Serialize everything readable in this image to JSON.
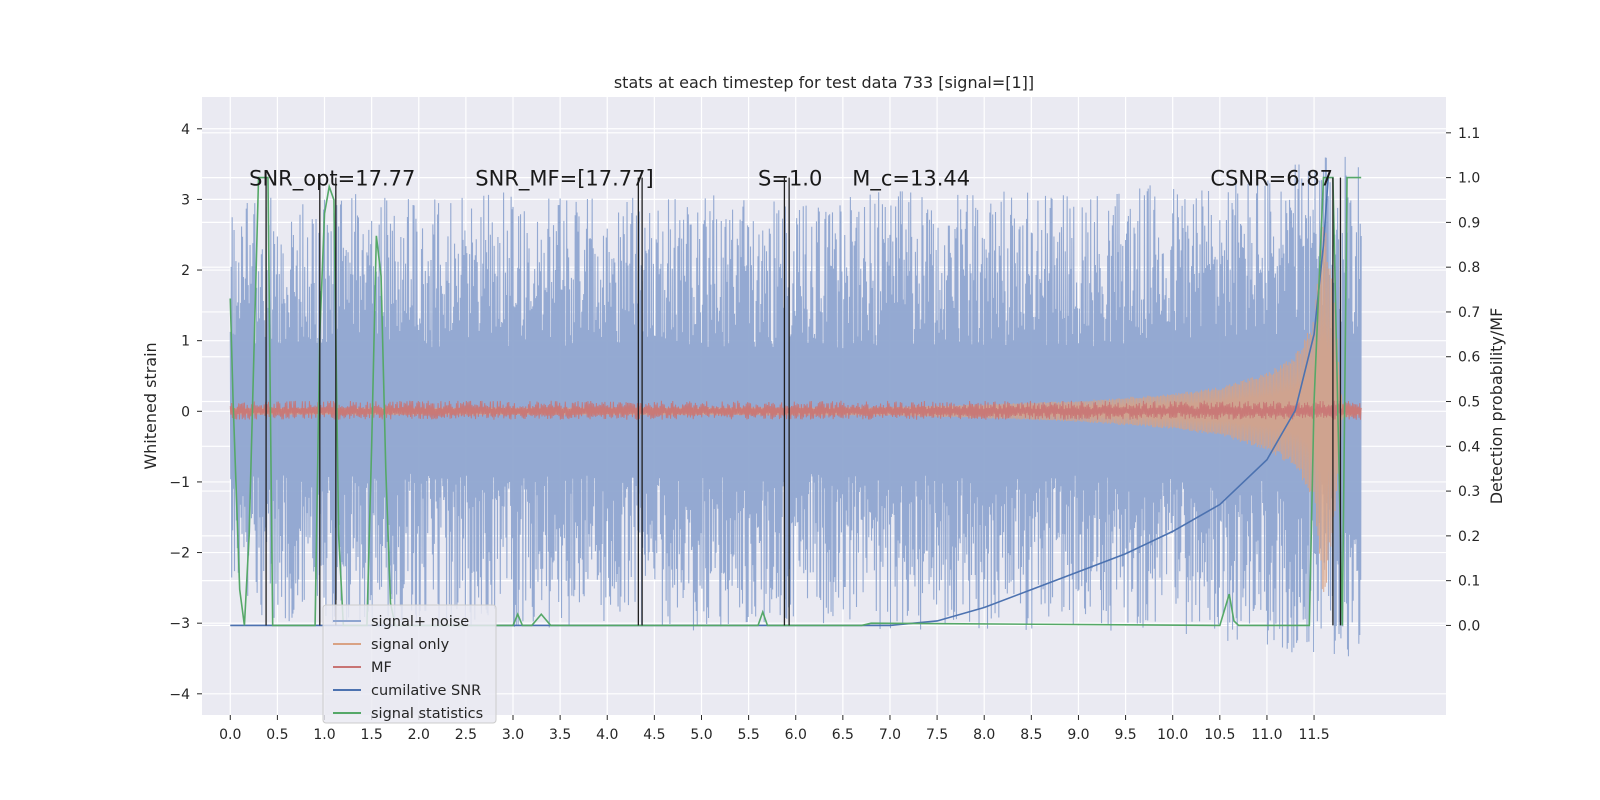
{
  "chart_data": {
    "type": "line",
    "title": "stats at each timestep for test data 733 [signal=[1]]",
    "xlabel": "",
    "ylabel": "Whitened strain",
    "ylabel_right": "Detection probability/MF",
    "xlim": [
      -0.3,
      12.9
    ],
    "ylim": [
      -4.3,
      4.45
    ],
    "ylim_right": [
      -0.2,
      1.18
    ],
    "grid": true,
    "legend_position": "lower-left",
    "x_ticks": [
      "0.0",
      "0.5",
      "1.0",
      "1.5",
      "2.0",
      "2.5",
      "3.0",
      "3.5",
      "4.0",
      "4.5",
      "5.0",
      "5.5",
      "6.0",
      "6.5",
      "7.0",
      "7.5",
      "8.0",
      "8.5",
      "9.0",
      "9.5",
      "10.0",
      "10.5",
      "11.0",
      "11.5"
    ],
    "y_ticks": [
      "4",
      "3",
      "2",
      "1",
      "0",
      "−1",
      "−2",
      "−3",
      "−4"
    ],
    "y_ticks_right": [
      "1.1",
      "1.0",
      "0.9",
      "0.8",
      "0.7",
      "0.6",
      "0.5",
      "0.4",
      "0.3",
      "0.2",
      "0.1",
      "0.0"
    ],
    "annotations": [
      {
        "text": "SNR_opt=17.77",
        "x": 0.2,
        "y": 3.2
      },
      {
        "text": "SNR_MF=[17.77]",
        "x": 2.6,
        "y": 3.2
      },
      {
        "text": "S=1.0",
        "x": 5.6,
        "y": 3.2
      },
      {
        "text": "M_c=13.44",
        "x": 6.6,
        "y": 3.2
      },
      {
        "text": "CSNR=6.87",
        "x": 10.4,
        "y": 3.2
      }
    ],
    "series": [
      {
        "name": "signal+ noise",
        "color": "#8fa5d0",
        "axis": "left",
        "envelope": {
          "x": [
            0.0,
            0.5,
            1.0,
            2.0,
            3.0,
            4.0,
            5.0,
            6.0,
            7.0,
            8.0,
            9.0,
            10.0,
            11.0,
            11.5,
            12.0
          ],
          "upper": [
            2.4,
            2.6,
            2.6,
            2.5,
            2.6,
            2.5,
            2.6,
            2.5,
            2.6,
            2.6,
            2.6,
            2.7,
            2.8,
            3.0,
            3.1
          ],
          "lower": [
            -2.3,
            -2.5,
            -2.5,
            -2.5,
            -2.6,
            -2.5,
            -2.6,
            -2.5,
            -2.6,
            -2.6,
            -2.6,
            -2.6,
            -2.8,
            -2.9,
            -2.9
          ]
        }
      },
      {
        "name": "signal only",
        "color": "#d9a284",
        "axis": "left",
        "envelope": {
          "x": [
            0.0,
            7.0,
            8.0,
            9.0,
            10.0,
            10.5,
            11.0,
            11.3,
            11.5,
            11.6,
            11.7,
            11.8,
            12.0
          ],
          "upper": [
            0.05,
            0.06,
            0.1,
            0.15,
            0.25,
            0.35,
            0.55,
            0.8,
            1.3,
            2.8,
            1.8,
            0.1,
            0.05
          ],
          "lower": [
            -0.05,
            -0.06,
            -0.1,
            -0.15,
            -0.25,
            -0.35,
            -0.55,
            -0.8,
            -1.3,
            -2.8,
            -1.8,
            -0.1,
            -0.05
          ]
        }
      },
      {
        "name": "MF",
        "color": "#c87474",
        "axis": "left",
        "envelope": {
          "x": [
            0.0,
            12.0
          ],
          "upper": [
            0.15,
            0.15
          ],
          "lower": [
            -0.12,
            -0.12
          ]
        }
      },
      {
        "name": "cumilative SNR",
        "color": "#4c72b0",
        "axis": "right",
        "x": [
          0.0,
          7.0,
          7.5,
          8.0,
          8.5,
          9.0,
          9.5,
          10.0,
          10.5,
          11.0,
          11.3,
          11.5,
          11.6,
          11.65
        ],
        "y": [
          0.0,
          0.0,
          0.01,
          0.04,
          0.08,
          0.12,
          0.16,
          0.21,
          0.27,
          0.37,
          0.48,
          0.65,
          0.85,
          1.0
        ]
      },
      {
        "name": "signal statistics",
        "color": "#55a868",
        "axis": "right",
        "x": [
          0.0,
          0.03,
          0.1,
          0.15,
          0.2,
          0.25,
          0.3,
          0.4,
          0.45,
          0.9,
          0.95,
          1.0,
          1.05,
          1.1,
          1.15,
          1.2,
          1.45,
          1.5,
          1.55,
          1.6,
          1.65,
          1.7,
          1.75,
          3.0,
          3.05,
          3.1,
          3.2,
          3.3,
          3.4,
          5.6,
          5.65,
          5.7,
          6.7,
          6.8,
          10.5,
          10.6,
          10.65,
          10.7,
          10.8,
          11.45,
          11.5,
          11.6,
          11.65,
          11.7,
          11.75,
          11.8,
          11.85,
          11.9,
          12.0
        ],
        "y": [
          0.73,
          0.5,
          0.08,
          0.0,
          0.2,
          0.6,
          1.0,
          1.0,
          0.0,
          0.0,
          0.65,
          0.92,
          0.98,
          0.95,
          0.2,
          0.0,
          0.0,
          0.4,
          0.87,
          0.78,
          0.35,
          0.05,
          0.0,
          0.0,
          0.025,
          0.0,
          0.0,
          0.025,
          0.0,
          0.0,
          0.03,
          0.0,
          0.0,
          0.005,
          0.0,
          0.07,
          0.01,
          0.0,
          0.0,
          0.0,
          0.5,
          1.0,
          1.0,
          1.0,
          0.5,
          0.0,
          1.0,
          1.0,
          1.0
        ]
      }
    ],
    "threshold_lines": {
      "name": "detection triggers",
      "color": "#1f1f1f",
      "x": [
        0.38,
        0.95,
        1.12,
        4.33,
        4.37,
        5.88,
        5.93,
        11.7,
        11.78
      ]
    }
  },
  "legend": {
    "items": [
      {
        "label": "signal+ noise",
        "color": "#8fa5d0"
      },
      {
        "label": "signal only",
        "color": "#d9a284"
      },
      {
        "label": "MF",
        "color": "#c87474"
      },
      {
        "label": "cumilative SNR",
        "color": "#4c72b0"
      },
      {
        "label": "signal statistics",
        "color": "#55a868"
      }
    ]
  },
  "colors": {
    "plot_background": "#eaeaf2",
    "grid": "#ffffff"
  }
}
